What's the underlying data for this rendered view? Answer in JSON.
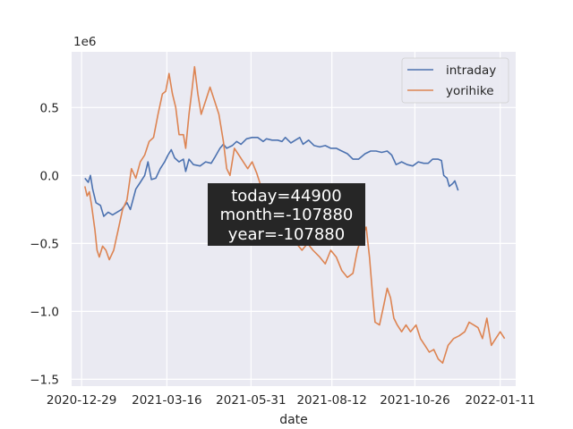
{
  "chart_data": {
    "type": "line",
    "xlabel": "date",
    "offset_label": "1e6",
    "xlim": [
      "2020-12-20",
      "2022-01-25"
    ],
    "ylim": [
      -1.55,
      0.91
    ],
    "scale": 1000000,
    "x_ticks": [
      "2020-12-29",
      "2021-03-16",
      "2021-05-31",
      "2021-08-12",
      "2021-10-26",
      "2022-01-11"
    ],
    "y_ticks": [
      -1.5,
      -1.0,
      -0.5,
      0.0,
      0.5
    ],
    "y_tick_labels": [
      "−1.5",
      "−1.0",
      "−0.5",
      "0.0",
      "0.5"
    ],
    "grid": true,
    "legend_position": "top-right",
    "colors": {
      "intraday": "#4c72b0",
      "yorihike": "#dd8452",
      "background": "#eaeaf2",
      "grid": "#ffffff"
    },
    "annotation": [
      "today=44900",
      "month=-107880",
      "year=-107880"
    ],
    "series": [
      {
        "name": "intraday",
        "points": [
          [
            "2021-01-01",
            -0.02
          ],
          [
            "2021-01-04",
            -0.05
          ],
          [
            "2021-01-06",
            0.0
          ],
          [
            "2021-01-08",
            -0.1
          ],
          [
            "2021-01-11",
            -0.2
          ],
          [
            "2021-01-15",
            -0.22
          ],
          [
            "2021-01-18",
            -0.3
          ],
          [
            "2021-01-22",
            -0.27
          ],
          [
            "2021-01-26",
            -0.29
          ],
          [
            "2021-01-30",
            -0.27
          ],
          [
            "2021-02-03",
            -0.25
          ],
          [
            "2021-02-08",
            -0.2
          ],
          [
            "2021-02-11",
            -0.25
          ],
          [
            "2021-02-16",
            -0.1
          ],
          [
            "2021-02-20",
            -0.05
          ],
          [
            "2021-02-24",
            0.0
          ],
          [
            "2021-02-27",
            0.1
          ],
          [
            "2021-03-02",
            -0.03
          ],
          [
            "2021-03-06",
            -0.02
          ],
          [
            "2021-03-10",
            0.05
          ],
          [
            "2021-03-14",
            0.1
          ],
          [
            "2021-03-17",
            0.15
          ],
          [
            "2021-03-20",
            0.19
          ],
          [
            "2021-03-23",
            0.13
          ],
          [
            "2021-03-27",
            0.1
          ],
          [
            "2021-03-31",
            0.12
          ],
          [
            "2021-04-02",
            0.03
          ],
          [
            "2021-04-05",
            0.12
          ],
          [
            "2021-04-09",
            0.08
          ],
          [
            "2021-04-15",
            0.07
          ],
          [
            "2021-04-20",
            0.1
          ],
          [
            "2021-04-25",
            0.09
          ],
          [
            "2021-04-28",
            0.13
          ],
          [
            "2021-05-03",
            0.2
          ],
          [
            "2021-05-06",
            0.23
          ],
          [
            "2021-05-09",
            0.2
          ],
          [
            "2021-05-14",
            0.22
          ],
          [
            "2021-05-18",
            0.25
          ],
          [
            "2021-05-22",
            0.23
          ],
          [
            "2021-05-27",
            0.27
          ],
          [
            "2021-06-01",
            0.28
          ],
          [
            "2021-06-06",
            0.28
          ],
          [
            "2021-06-11",
            0.25
          ],
          [
            "2021-06-14",
            0.27
          ],
          [
            "2021-06-19",
            0.26
          ],
          [
            "2021-06-24",
            0.26
          ],
          [
            "2021-06-28",
            0.25
          ],
          [
            "2021-07-01",
            0.28
          ],
          [
            "2021-07-06",
            0.24
          ],
          [
            "2021-07-10",
            0.26
          ],
          [
            "2021-07-14",
            0.28
          ],
          [
            "2021-07-17",
            0.23
          ],
          [
            "2021-07-22",
            0.26
          ],
          [
            "2021-07-27",
            0.22
          ],
          [
            "2021-08-01",
            0.21
          ],
          [
            "2021-08-06",
            0.22
          ],
          [
            "2021-08-11",
            0.2
          ],
          [
            "2021-08-16",
            0.2
          ],
          [
            "2021-08-21",
            0.18
          ],
          [
            "2021-08-26",
            0.16
          ],
          [
            "2021-08-31",
            0.12
          ],
          [
            "2021-09-05",
            0.12
          ],
          [
            "2021-09-11",
            0.16
          ],
          [
            "2021-09-16",
            0.18
          ],
          [
            "2021-09-21",
            0.18
          ],
          [
            "2021-09-26",
            0.17
          ],
          [
            "2021-10-01",
            0.18
          ],
          [
            "2021-10-05",
            0.15
          ],
          [
            "2021-10-09",
            0.08
          ],
          [
            "2021-10-14",
            0.1
          ],
          [
            "2021-10-19",
            0.08
          ],
          [
            "2021-10-24",
            0.07
          ],
          [
            "2021-10-29",
            0.1
          ],
          [
            "2021-11-03",
            0.09
          ],
          [
            "2021-11-07",
            0.09
          ],
          [
            "2021-11-11",
            0.12
          ],
          [
            "2021-11-16",
            0.12
          ],
          [
            "2021-11-19",
            0.11
          ],
          [
            "2021-11-21",
            0.0
          ],
          [
            "2021-11-24",
            -0.02
          ],
          [
            "2021-11-26",
            -0.08
          ],
          [
            "2021-11-29",
            -0.06
          ],
          [
            "2021-12-01",
            -0.04
          ],
          [
            "2021-12-04",
            -0.11
          ]
        ]
      },
      {
        "name": "yorihike",
        "points": [
          [
            "2021-01-01",
            -0.08
          ],
          [
            "2021-01-03",
            -0.15
          ],
          [
            "2021-01-05",
            -0.12
          ],
          [
            "2021-01-07",
            -0.22
          ],
          [
            "2021-01-10",
            -0.4
          ],
          [
            "2021-01-12",
            -0.55
          ],
          [
            "2021-01-14",
            -0.6
          ],
          [
            "2021-01-17",
            -0.52
          ],
          [
            "2021-01-20",
            -0.55
          ],
          [
            "2021-01-23",
            -0.62
          ],
          [
            "2021-01-27",
            -0.55
          ],
          [
            "2021-01-31",
            -0.4
          ],
          [
            "2021-02-04",
            -0.25
          ],
          [
            "2021-02-08",
            -0.18
          ],
          [
            "2021-02-12",
            0.05
          ],
          [
            "2021-02-16",
            -0.02
          ],
          [
            "2021-02-20",
            0.1
          ],
          [
            "2021-02-24",
            0.15
          ],
          [
            "2021-02-28",
            0.25
          ],
          [
            "2021-03-04",
            0.28
          ],
          [
            "2021-03-08",
            0.45
          ],
          [
            "2021-03-12",
            0.6
          ],
          [
            "2021-03-15",
            0.62
          ],
          [
            "2021-03-18",
            0.75
          ],
          [
            "2021-03-21",
            0.6
          ],
          [
            "2021-03-24",
            0.5
          ],
          [
            "2021-03-27",
            0.3
          ],
          [
            "2021-03-31",
            0.3
          ],
          [
            "2021-04-02",
            0.2
          ],
          [
            "2021-04-05",
            0.45
          ],
          [
            "2021-04-08",
            0.65
          ],
          [
            "2021-04-10",
            0.8
          ],
          [
            "2021-04-13",
            0.6
          ],
          [
            "2021-04-16",
            0.45
          ],
          [
            "2021-04-20",
            0.55
          ],
          [
            "2021-04-24",
            0.65
          ],
          [
            "2021-04-28",
            0.55
          ],
          [
            "2021-05-02",
            0.45
          ],
          [
            "2021-05-06",
            0.25
          ],
          [
            "2021-05-09",
            0.05
          ],
          [
            "2021-05-12",
            0.0
          ],
          [
            "2021-05-16",
            0.2
          ],
          [
            "2021-05-20",
            0.15
          ],
          [
            "2021-05-24",
            0.1
          ],
          [
            "2021-05-28",
            0.05
          ],
          [
            "2021-06-01",
            0.1
          ],
          [
            "2021-06-05",
            0.02
          ],
          [
            "2021-06-09",
            -0.08
          ],
          [
            "2021-06-14",
            -0.15
          ],
          [
            "2021-06-18",
            -0.25
          ],
          [
            "2021-06-22",
            -0.3
          ],
          [
            "2021-06-26",
            -0.35
          ],
          [
            "2021-07-01",
            -0.4
          ],
          [
            "2021-07-06",
            -0.45
          ],
          [
            "2021-07-11",
            -0.5
          ],
          [
            "2021-07-16",
            -0.55
          ],
          [
            "2021-07-21",
            -0.5
          ],
          [
            "2021-07-26",
            -0.55
          ],
          [
            "2021-08-01",
            -0.6
          ],
          [
            "2021-08-06",
            -0.65
          ],
          [
            "2021-08-11",
            -0.55
          ],
          [
            "2021-08-16",
            -0.6
          ],
          [
            "2021-08-21",
            -0.7
          ],
          [
            "2021-08-26",
            -0.75
          ],
          [
            "2021-08-31",
            -0.72
          ],
          [
            "2021-09-04",
            -0.55
          ],
          [
            "2021-09-08",
            -0.45
          ],
          [
            "2021-09-12",
            -0.38
          ],
          [
            "2021-09-15",
            -0.6
          ],
          [
            "2021-09-18",
            -0.9
          ],
          [
            "2021-09-20",
            -1.08
          ],
          [
            "2021-09-24",
            -1.1
          ],
          [
            "2021-09-28",
            -0.95
          ],
          [
            "2021-10-01",
            -0.83
          ],
          [
            "2021-10-04",
            -0.9
          ],
          [
            "2021-10-07",
            -1.05
          ],
          [
            "2021-10-10",
            -1.1
          ],
          [
            "2021-10-14",
            -1.15
          ],
          [
            "2021-10-18",
            -1.1
          ],
          [
            "2021-10-22",
            -1.15
          ],
          [
            "2021-10-27",
            -1.1
          ],
          [
            "2021-10-31",
            -1.2
          ],
          [
            "2021-11-04",
            -1.25
          ],
          [
            "2021-11-08",
            -1.3
          ],
          [
            "2021-11-12",
            -1.28
          ],
          [
            "2021-11-16",
            -1.35
          ],
          [
            "2021-11-20",
            -1.38
          ],
          [
            "2021-11-25",
            -1.25
          ],
          [
            "2021-11-30",
            -1.2
          ],
          [
            "2021-12-05",
            -1.18
          ],
          [
            "2021-12-10",
            -1.15
          ],
          [
            "2021-12-14",
            -1.08
          ],
          [
            "2021-12-18",
            -1.1
          ],
          [
            "2021-12-22",
            -1.12
          ],
          [
            "2021-12-26",
            -1.2
          ],
          [
            "2021-12-30",
            -1.05
          ],
          [
            "2022-01-03",
            -1.25
          ],
          [
            "2022-01-07",
            -1.2
          ],
          [
            "2022-01-11",
            -1.15
          ],
          [
            "2022-01-15",
            -1.2
          ]
        ]
      }
    ]
  }
}
